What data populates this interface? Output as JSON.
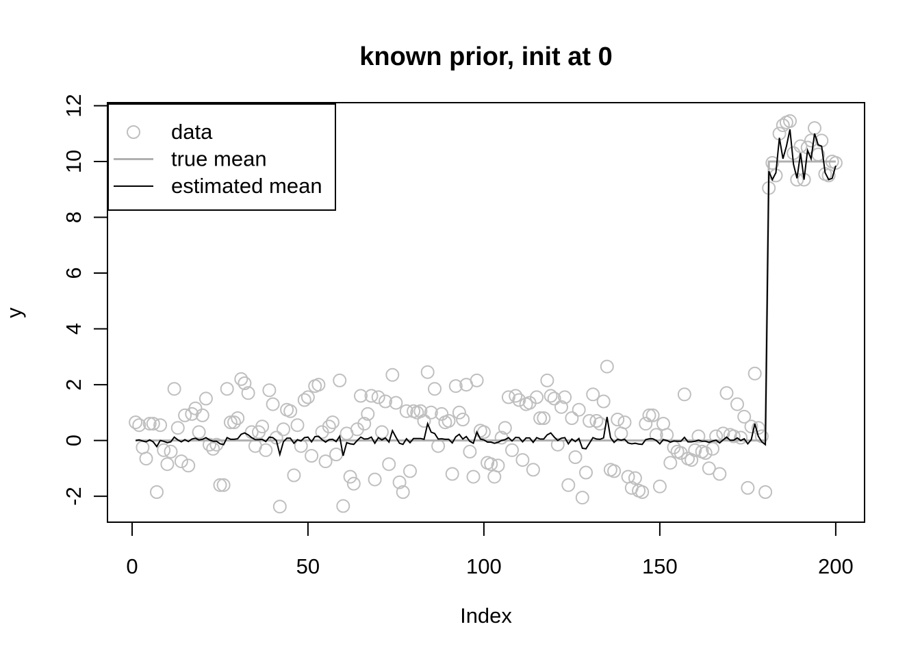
{
  "chart_data": {
    "type": "scatter",
    "title": "known prior, init at 0",
    "xlabel": "Index",
    "ylabel": "y",
    "x_ticks": [
      0,
      50,
      100,
      150,
      200
    ],
    "y_ticks": [
      -2,
      0,
      2,
      4,
      6,
      8,
      10,
      12
    ],
    "xlim": [
      -7,
      208.2
    ],
    "ylim": [
      -2.93,
      12.11
    ],
    "grid": false,
    "legend_position": "top-left",
    "changepoint_x": 181,
    "colors": {
      "data_points": "#bfbfbf",
      "true_mean": "#b0b0b0",
      "estimated_mean": "#000000",
      "axis": "#000000"
    },
    "legend": [
      {
        "label": "data",
        "type": "point",
        "color": "#bfbfbf"
      },
      {
        "label": "true mean",
        "type": "line",
        "color": "#b0b0b0"
      },
      {
        "label": "estimated mean",
        "type": "line",
        "color": "#000000"
      }
    ],
    "x_is_index": true,
    "n_points": 200,
    "series": [
      {
        "name": "data",
        "style": "open-circles",
        "y": [
          0.65,
          0.55,
          -0.25,
          -0.65,
          0.6,
          0.6,
          -1.85,
          0.55,
          -0.35,
          -0.85,
          -0.4,
          1.85,
          0.45,
          -0.75,
          0.9,
          -0.9,
          0.95,
          1.15,
          0.3,
          0.9,
          1.5,
          -0.15,
          -0.3,
          -0.15,
          -1.6,
          -1.6,
          1.85,
          0.65,
          0.65,
          0.8,
          2.2,
          2.05,
          1.7,
          0.3,
          -0.2,
          0.3,
          0.5,
          -0.35,
          1.8,
          1.3,
          0.1,
          -2.37,
          0.4,
          1.1,
          1.05,
          -1.25,
          0.55,
          -0.2,
          1.45,
          1.55,
          -0.55,
          1.95,
          2.0,
          0.3,
          -0.75,
          0.5,
          0.65,
          -0.5,
          2.15,
          -2.35,
          0.25,
          -1.3,
          -1.55,
          0.4,
          1.6,
          0.6,
          0.95,
          1.6,
          -1.4,
          1.55,
          0.3,
          1.4,
          -0.85,
          2.35,
          1.35,
          -1.5,
          -1.85,
          1.05,
          -1.1,
          1.05,
          1.0,
          1.05,
          0.7,
          2.45,
          1.0,
          1.85,
          -0.2,
          0.95,
          0.65,
          0.7,
          -1.2,
          1.95,
          1.0,
          0.75,
          2.0,
          -0.4,
          -1.3,
          2.15,
          0.35,
          0.3,
          -0.8,
          -0.85,
          -1.3,
          -0.9,
          0.1,
          0.45,
          1.55,
          -0.35,
          1.6,
          1.45,
          -0.7,
          1.3,
          1.35,
          -1.05,
          1.55,
          0.8,
          0.8,
          2.15,
          1.6,
          1.5,
          -0.15,
          1.2,
          1.55,
          -1.6,
          0.8,
          -0.6,
          1.1,
          -2.05,
          -1.15,
          0.7,
          1.65,
          0.7,
          0.6,
          1.4,
          2.65,
          -1.05,
          -1.1,
          0.75,
          0.25,
          0.65,
          -1.3,
          -1.7,
          -1.35,
          -1.8,
          -1.85,
          0.6,
          0.9,
          0.9,
          0.2,
          -1.65,
          0.6,
          0.2,
          -0.8,
          -0.25,
          -0.4,
          -0.45,
          1.65,
          -0.65,
          -0.7,
          -0.35,
          0.15,
          -0.4,
          -0.45,
          -1.0,
          -0.3,
          0.15,
          -1.2,
          0.25,
          1.7,
          0.2,
          0.15,
          1.3,
          0.1,
          0.85,
          -1.7,
          0.5,
          2.4,
          0.45,
          0.15,
          -1.85,
          9.05,
          9.95,
          9.5,
          11.0,
          11.3,
          11.4,
          11.45,
          10.3,
          9.35,
          10.55,
          9.35,
          10.5,
          10.75,
          11.2,
          10.25,
          10.75,
          9.55,
          9.5,
          10.0,
          9.95
        ]
      },
      {
        "name": "true mean",
        "style": "line",
        "segments": [
          {
            "x_start": 1,
            "x_end": 180,
            "y": 0
          },
          {
            "x_start": 181,
            "x_end": 200,
            "y": 10
          }
        ]
      },
      {
        "name": "estimated mean",
        "style": "line",
        "y": [
          0,
          0.02,
          -0.02,
          -0.05,
          0.02,
          -0.05,
          -0.22,
          0,
          -0.03,
          -0.08,
          -0.05,
          0.12,
          0.02,
          -0.05,
          0.03,
          -0.04,
          0.05,
          0.08,
          0.02,
          0.04,
          0.1,
          0.02,
          -0.03,
          -0.03,
          -0.12,
          -0.15,
          0.1,
          0.04,
          0.04,
          0.06,
          0.22,
          0.27,
          0.2,
          0.1,
          0.03,
          0.03,
          0.04,
          -0.04,
          0.12,
          0.1,
          0,
          -0.5,
          -0.05,
          0.08,
          0.08,
          -0.1,
          0.03,
          -0.02,
          0.1,
          0.12,
          -0.05,
          0.14,
          0.15,
          0.03,
          -0.06,
          0.03,
          0.04,
          -0.04,
          0.15,
          -0.55,
          -0.08,
          -0.12,
          -0.14,
          0,
          0.12,
          0.05,
          0.06,
          0.12,
          -0.1,
          0.1,
          0.02,
          0.09,
          -0.06,
          0.35,
          0.12,
          -0.1,
          -0.14,
          0.06,
          -0.08,
          0.07,
          0.07,
          0.07,
          0.04,
          0.6,
          0.3,
          0.25,
          0.05,
          0.06,
          0.04,
          0.04,
          -0.09,
          0.13,
          0.22,
          0.05,
          0.14,
          -0.03,
          -0.1,
          0.3,
          0.05,
          0.02,
          -0.06,
          -0.06,
          -0.1,
          -0.07,
          0,
          0.03,
          0.1,
          -0.02,
          0.11,
          0.1,
          -0.05,
          0.09,
          0.09,
          -0.07,
          0.1,
          0.05,
          0.05,
          0.2,
          0.27,
          0.12,
          0,
          0.08,
          0.1,
          -0.12,
          0.05,
          -0.04,
          0.07,
          -0.28,
          -0.3,
          -0.1,
          0.1,
          0.05,
          0.04,
          0.09,
          0.84,
          0.1,
          -0.07,
          0.04,
          0.01,
          0.04,
          -0.09,
          -0.12,
          -0.1,
          -0.13,
          -0.14,
          0.03,
          0.06,
          0.06,
          0,
          -0.12,
          0.03,
          0,
          -0.06,
          -0.02,
          -0.03,
          -0.03,
          0.11,
          -0.05,
          -0.05,
          -0.03,
          0.01,
          -0.03,
          -0.03,
          -0.07,
          -0.02,
          0.01,
          -0.09,
          0.02,
          0.12,
          0.01,
          0.01,
          0.09,
          0,
          0.06,
          -0.12,
          0.03,
          0.6,
          0.15,
          -0.05,
          -0.15,
          9.65,
          9.35,
          9.6,
          10.85,
          10.1,
          10.55,
          11.15,
          9.9,
          9.4,
          10.3,
          9.35,
          10.4,
          10.1,
          11.0,
          10.6,
          10.55,
          9.6,
          9.35,
          9.4,
          9.85
        ]
      }
    ]
  }
}
